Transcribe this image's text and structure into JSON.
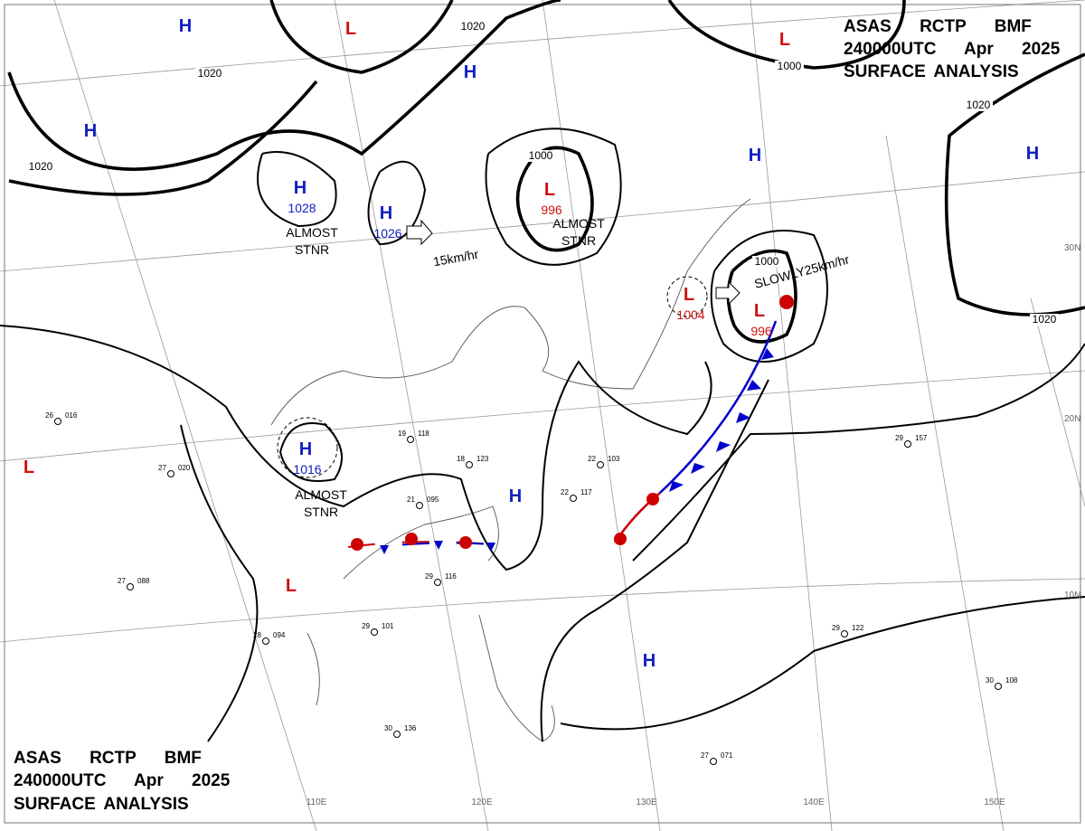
{
  "header_top": {
    "line1": "ASAS RCTP BMF",
    "line2": "240000UTC Apr 2025",
    "line3": "SURFACE ANALYSIS"
  },
  "header_bottom": {
    "line1": "ASAS RCTP BMF",
    "line2": "240000UTC Apr 2025",
    "line3": "SURFACE ANALYSIS"
  },
  "pressure_centers": [
    {
      "symbol": "H"
    },
    {
      "symbol": "L"
    },
    {
      "symbol": "H"
    },
    {
      "symbol": "H"
    },
    {
      "symbol": "H",
      "pressure": 1028
    },
    {
      "symbol": "H",
      "pressure": 1026
    },
    {
      "symbol": "L",
      "pressure": 996
    },
    {
      "symbol": "L",
      "pressure": 1004
    },
    {
      "symbol": "L",
      "pressure": 996
    },
    {
      "symbol": "H"
    },
    {
      "symbol": "H"
    },
    {
      "symbol": "L"
    },
    {
      "symbol": "L"
    },
    {
      "symbol": "H",
      "pressure": 1016
    },
    {
      "symbol": "H"
    },
    {
      "symbol": "L"
    },
    {
      "symbol": "H"
    }
  ],
  "isobar_labels": [
    1020,
    1020,
    1020,
    1000,
    1000,
    1020,
    1000,
    1020
  ],
  "annotations": [
    {
      "line1": "ALMOST",
      "line2": "STNR"
    },
    {
      "line1": "ALMOST",
      "line2": "STNR"
    },
    {
      "line1": "ALMOST",
      "line2": "STNR"
    }
  ],
  "movements": [
    "15km/hr",
    "SLOWLY25km/hr"
  ],
  "latitude_labels": [
    "30N",
    "20N",
    "10N"
  ],
  "longitude_labels": [
    "110E",
    "120E",
    "130E",
    "140E",
    "150E"
  ],
  "stations": [
    {
      "temp": "26",
      "pressure": "016"
    },
    {
      "temp": "27",
      "pressure": "020"
    },
    {
      "temp": "27",
      "pressure": "088"
    },
    {
      "temp": "28",
      "pressure": "094"
    },
    {
      "temp": "29",
      "pressure": "101"
    },
    {
      "temp": "29",
      "pressure": "116"
    },
    {
      "temp": "21",
      "pressure": "095"
    },
    {
      "temp": "18",
      "pressure": "123"
    },
    {
      "temp": "19",
      "pressure": "118"
    },
    {
      "temp": "22",
      "pressure": "103"
    },
    {
      "temp": "29",
      "pressure": "157"
    },
    {
      "temp": "29",
      "pressure": "122"
    },
    {
      "temp": "30",
      "pressure": "136"
    },
    {
      "temp": "27",
      "pressure": "071"
    },
    {
      "temp": "30",
      "pressure": "108"
    },
    {
      "temp": "22",
      "pressure": "117"
    }
  ]
}
